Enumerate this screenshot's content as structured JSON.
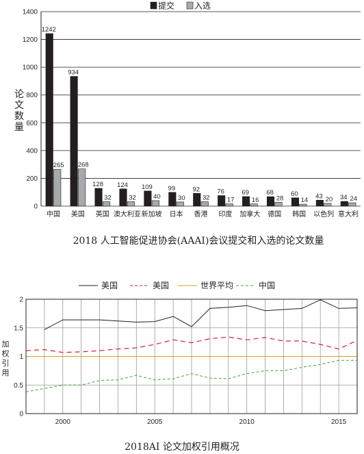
{
  "chart_data": [
    {
      "type": "bar",
      "title": "2018 人工智能促进协会(AAAI)会议提交和入选的论文数量",
      "ylabel": "论文数量",
      "xlabel": "",
      "ylim": [
        0,
        1400
      ],
      "yticks": [
        0,
        200,
        400,
        600,
        800,
        1000,
        1200,
        1400
      ],
      "grid": true,
      "legend": "top-center",
      "categories": [
        "中国",
        "美国",
        "英国",
        "澳大利亚",
        "新加坡",
        "日本",
        "香港",
        "印度",
        "加拿大",
        "德国",
        "韩国",
        "以色列",
        "意大利"
      ],
      "series": [
        {
          "name": "提交",
          "color": "#231f20",
          "values": [
            1242,
            934,
            128,
            124,
            109,
            99,
            92,
            76,
            69,
            68,
            60,
            43,
            34
          ]
        },
        {
          "name": "入选",
          "color": "#a7a9ac",
          "values": [
            265,
            268,
            32,
            32,
            40,
            30,
            32,
            17,
            16,
            28,
            14,
            20,
            24
          ]
        }
      ]
    },
    {
      "type": "line",
      "title": "2018AI 论文加权引用概况",
      "ylabel": "加权引用",
      "xlabel": "",
      "xlim": [
        1998,
        2016
      ],
      "ylim": [
        0,
        2
      ],
      "xticks": [
        2000,
        2005,
        2010,
        2015
      ],
      "yticks": [
        0,
        0.5,
        1,
        1.5,
        2
      ],
      "grid": true,
      "legend": "top-center",
      "x": [
        1998,
        1999,
        2000,
        2001,
        2002,
        2003,
        2004,
        2005,
        2006,
        2007,
        2008,
        2009,
        2010,
        2011,
        2012,
        2013,
        2014,
        2015,
        2016
      ],
      "series": [
        {
          "name": "美国",
          "color": "#231f20",
          "style": "solid",
          "values": [
            null,
            1.47,
            1.64,
            1.64,
            1.64,
            1.62,
            1.6,
            1.61,
            1.7,
            1.52,
            1.84,
            1.86,
            1.89,
            1.8,
            1.82,
            1.84,
            1.99,
            1.84,
            1.85
          ]
        },
        {
          "name": "美国",
          "color": "#d4202a",
          "style": "dashed",
          "values": [
            1.1,
            1.12,
            1.07,
            1.08,
            1.1,
            1.13,
            1.15,
            1.21,
            1.29,
            1.24,
            1.31,
            1.34,
            1.29,
            1.33,
            1.27,
            1.27,
            1.21,
            1.13,
            1.28
          ]
        },
        {
          "name": "世界平均",
          "color": "#d4a017",
          "style": "solid",
          "values": [
            1,
            1,
            1,
            1,
            1,
            1,
            1,
            1,
            1,
            1,
            1,
            1,
            1,
            1,
            1,
            1,
            1,
            1,
            1
          ]
        },
        {
          "name": "中国",
          "color": "#3aa53a",
          "style": "dashed",
          "values": [
            0.38,
            0.44,
            0.5,
            0.5,
            0.58,
            0.59,
            0.67,
            0.59,
            0.61,
            0.7,
            0.62,
            0.61,
            0.7,
            0.75,
            0.75,
            0.81,
            0.86,
            0.93,
            0.93
          ]
        }
      ]
    }
  ]
}
